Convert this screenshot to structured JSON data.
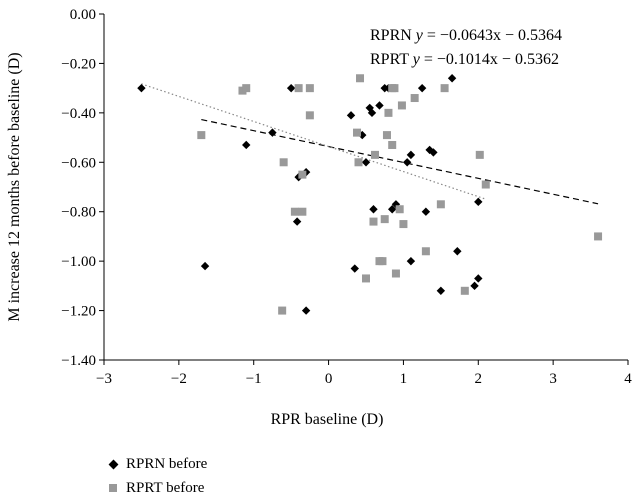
{
  "chart_data": {
    "type": "scatter",
    "title": "",
    "xlabel": "RPR baseline (D)",
    "ylabel": "M increase 12 months before baseline (D)",
    "xlim": [
      -3,
      4
    ],
    "ylim": [
      -1.4,
      0.0
    ],
    "xticks": [
      -3,
      -2,
      -1,
      0,
      1,
      2,
      3,
      4
    ],
    "yticks": [
      0.0,
      -0.2,
      -0.4,
      -0.6,
      -0.8,
      -1.0,
      -1.2,
      -1.4
    ],
    "xtick_labels": [
      "−3",
      "−2",
      "−1",
      "0",
      "1",
      "2",
      "3",
      "4"
    ],
    "ytick_labels": [
      "0.00",
      "−0.20",
      "−0.40",
      "−0.60",
      "−0.80",
      "−1.00",
      "−1.20",
      "−1.40"
    ],
    "grid": false,
    "legend_position": "bottom-left",
    "series": [
      {
        "name": "RPRN before",
        "marker": "diamond",
        "color": "#000000",
        "x": [
          -2.5,
          -1.65,
          -1.1,
          -0.5,
          -0.75,
          -0.42,
          -0.4,
          -0.3,
          -0.3,
          0.3,
          0.35,
          0.45,
          0.5,
          0.55,
          0.58,
          0.6,
          0.68,
          0.75,
          0.8,
          0.9,
          0.85,
          1.05,
          1.1,
          1.1,
          1.25,
          1.3,
          1.35,
          1.4,
          1.65,
          1.72,
          1.5,
          1.95,
          2.0,
          2.0
        ],
        "y": [
          -0.3,
          -1.02,
          -0.53,
          -0.3,
          -0.48,
          -0.84,
          -0.66,
          -0.64,
          -1.2,
          -0.41,
          -1.03,
          -0.49,
          -0.6,
          -0.38,
          -0.4,
          -0.79,
          -0.37,
          -0.3,
          -0.3,
          -0.77,
          -0.79,
          -0.6,
          -0.57,
          -1.0,
          -0.3,
          -0.8,
          -0.55,
          -0.56,
          -0.26,
          -0.96,
          -1.12,
          -1.1,
          -1.07,
          -0.76
        ]
      },
      {
        "name": "RPRT before",
        "marker": "square",
        "color": "#999999",
        "x": [
          -1.7,
          -1.15,
          -1.1,
          -0.6,
          -0.62,
          -0.45,
          -0.4,
          -0.35,
          -0.35,
          -0.25,
          -0.25,
          0.38,
          0.42,
          0.4,
          0.62,
          0.5,
          0.6,
          0.68,
          0.72,
          0.75,
          0.78,
          0.8,
          0.85,
          0.88,
          0.9,
          0.95,
          0.98,
          1.0,
          1.15,
          1.3,
          1.5,
          1.55,
          1.82,
          2.02,
          2.1,
          3.6,
          0.85
        ],
        "y": [
          -0.49,
          -0.31,
          -0.3,
          -0.6,
          -1.2,
          -0.8,
          -0.3,
          -0.8,
          -0.65,
          -0.3,
          -0.41,
          -0.48,
          -0.26,
          -0.6,
          -0.57,
          -1.07,
          -0.84,
          -1.0,
          -1.0,
          -0.83,
          -0.49,
          -0.4,
          -0.53,
          -0.3,
          -1.05,
          -0.79,
          -0.37,
          -0.85,
          -0.34,
          -0.96,
          -0.77,
          -0.3,
          -1.12,
          -0.57,
          -0.69,
          -0.9,
          -0.3
        ]
      }
    ],
    "trendlines": [
      {
        "series": "RPRN before",
        "label": "RPRN",
        "equation": "y = −0.0643x − 0.5364",
        "slope": -0.0643,
        "intercept": -0.5364,
        "style": "dashed",
        "x_range": [
          -1.7,
          3.6
        ]
      },
      {
        "series": "RPRT before",
        "label": "RPRT",
        "equation": "y = −0.1014x − 0.5362",
        "slope": -0.1014,
        "intercept": -0.5362,
        "style": "dotted",
        "x_range": [
          -2.5,
          2.1
        ]
      }
    ]
  }
}
